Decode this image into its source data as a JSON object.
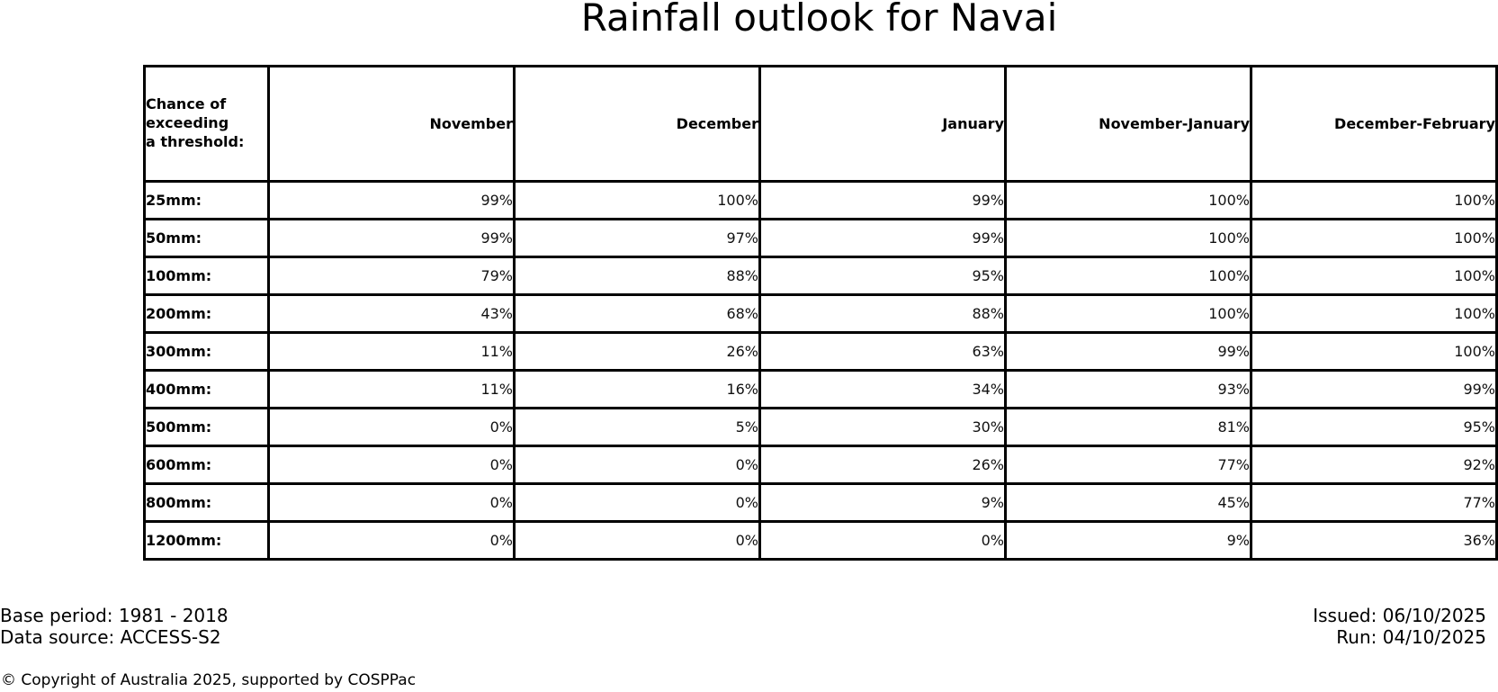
{
  "title": "Rainfall outlook for Navai",
  "chart_data": {
    "type": "table",
    "title": "Rainfall outlook for Navai",
    "corner_header": "Chance of\nexceeding\na threshold:",
    "columns": [
      "November",
      "December",
      "January",
      "November-January",
      "December-February"
    ],
    "rows": [
      {
        "label": "25mm:",
        "values": [
          "99%",
          "100%",
          "99%",
          "100%",
          "100%"
        ]
      },
      {
        "label": "50mm:",
        "values": [
          "99%",
          "97%",
          "99%",
          "100%",
          "100%"
        ]
      },
      {
        "label": "100mm:",
        "values": [
          "79%",
          "88%",
          "95%",
          "100%",
          "100%"
        ]
      },
      {
        "label": "200mm:",
        "values": [
          "43%",
          "68%",
          "88%",
          "100%",
          "100%"
        ]
      },
      {
        "label": "300mm:",
        "values": [
          "11%",
          "26%",
          "63%",
          "99%",
          "100%"
        ]
      },
      {
        "label": "400mm:",
        "values": [
          "11%",
          "16%",
          "34%",
          "93%",
          "99%"
        ]
      },
      {
        "label": "500mm:",
        "values": [
          "0%",
          "5%",
          "30%",
          "81%",
          "95%"
        ]
      },
      {
        "label": "600mm:",
        "values": [
          "0%",
          "0%",
          "26%",
          "77%",
          "92%"
        ]
      },
      {
        "label": "800mm:",
        "values": [
          "0%",
          "0%",
          "9%",
          "45%",
          "77%"
        ]
      },
      {
        "label": "1200mm:",
        "values": [
          "0%",
          "0%",
          "0%",
          "9%",
          "36%"
        ]
      }
    ],
    "values_percent": [
      [
        99,
        100,
        99,
        100,
        100
      ],
      [
        99,
        97,
        99,
        100,
        100
      ],
      [
        79,
        88,
        95,
        100,
        100
      ],
      [
        43,
        68,
        88,
        100,
        100
      ],
      [
        11,
        26,
        63,
        99,
        100
      ],
      [
        11,
        16,
        34,
        93,
        99
      ],
      [
        0,
        5,
        30,
        81,
        95
      ],
      [
        0,
        0,
        26,
        77,
        92
      ],
      [
        0,
        0,
        9,
        45,
        77
      ],
      [
        0,
        0,
        0,
        9,
        36
      ]
    ]
  },
  "footer": {
    "base_period": "Base period: 1981 - 2018",
    "data_source": "Data source: ACCESS-S2",
    "issued": "Issued: 06/10/2025",
    "run": "Run: 04/10/2025",
    "copyright": "© Copyright of Australia 2025, supported by COSPPac"
  },
  "colors": {
    "text": "#000000",
    "border": "#000000",
    "background": "#ffffff"
  }
}
